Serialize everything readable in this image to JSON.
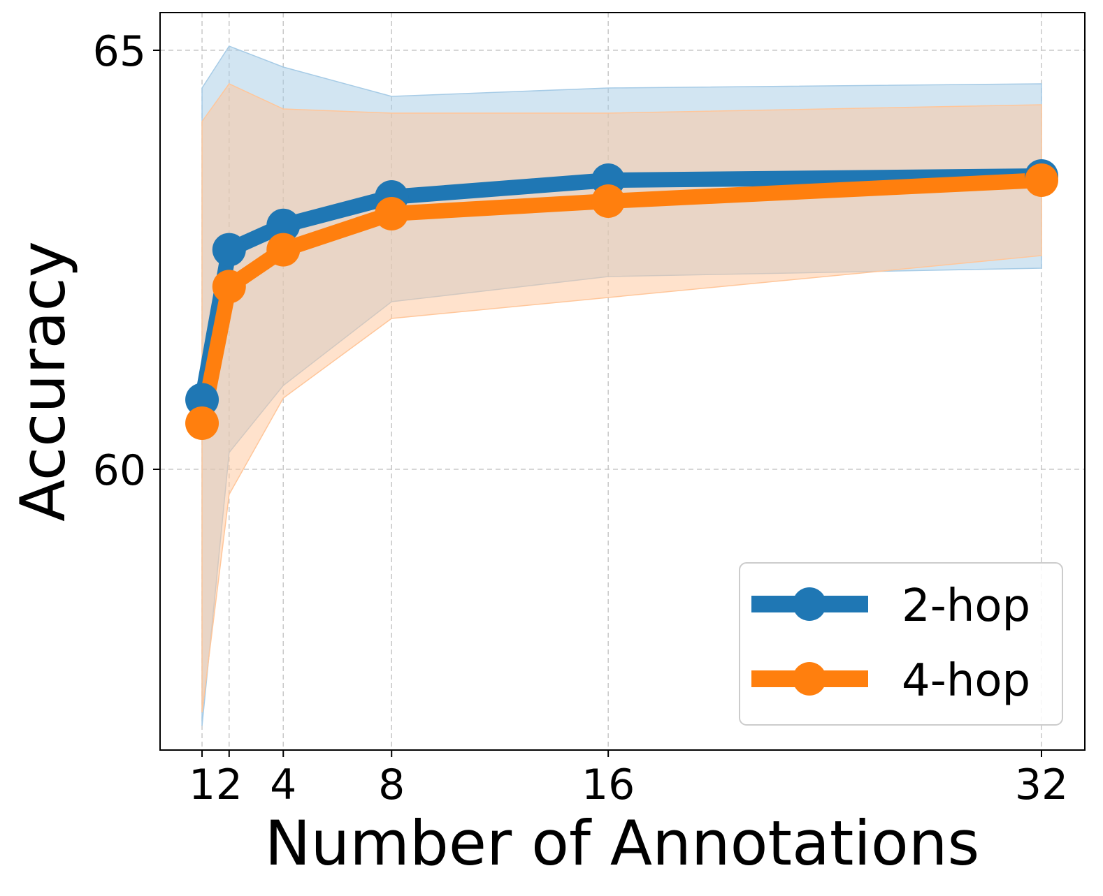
{
  "colors": {
    "series_2hop": "#1f77b4",
    "series_4hop": "#ff7f0e",
    "band_2hop": "#a6cbe6",
    "band_4hop": "#ffc69a",
    "grid": "#c8c8c8",
    "axis": "#000000",
    "legend_border": "#cccccc"
  },
  "chart_data": {
    "type": "line",
    "title": "",
    "xlabel": "Number of Annotations",
    "ylabel": "Accuracy",
    "x": [
      1,
      2,
      4,
      8,
      16,
      32
    ],
    "xticks": [
      1,
      2,
      4,
      8,
      16,
      32
    ],
    "xtick_labels": [
      "1",
      "2",
      "4",
      "8",
      "16",
      "32"
    ],
    "yticks": [
      60,
      65
    ],
    "ytick_labels": [
      "60",
      "65"
    ],
    "xlim": [
      -0.55,
      33.6
    ],
    "ylim": [
      56.65,
      65.45
    ],
    "grid": true,
    "legend_position": "lower-right",
    "series": [
      {
        "name": "2-hop",
        "label": "2-hop",
        "values": [
          60.83,
          62.62,
          62.91,
          63.25,
          63.45,
          63.5
        ],
        "lower": [
          56.94,
          60.2,
          61.0,
          62.0,
          62.3,
          62.4
        ],
        "upper": [
          64.55,
          65.05,
          64.8,
          64.45,
          64.55,
          64.6
        ]
      },
      {
        "name": "4-hop",
        "label": "4-hop",
        "values": [
          60.55,
          62.18,
          62.62,
          63.05,
          63.2,
          63.45
        ],
        "lower": [
          57.1,
          59.7,
          60.85,
          61.8,
          62.05,
          62.55
        ],
        "upper": [
          64.15,
          64.6,
          64.3,
          64.25,
          64.25,
          64.35
        ]
      }
    ]
  }
}
